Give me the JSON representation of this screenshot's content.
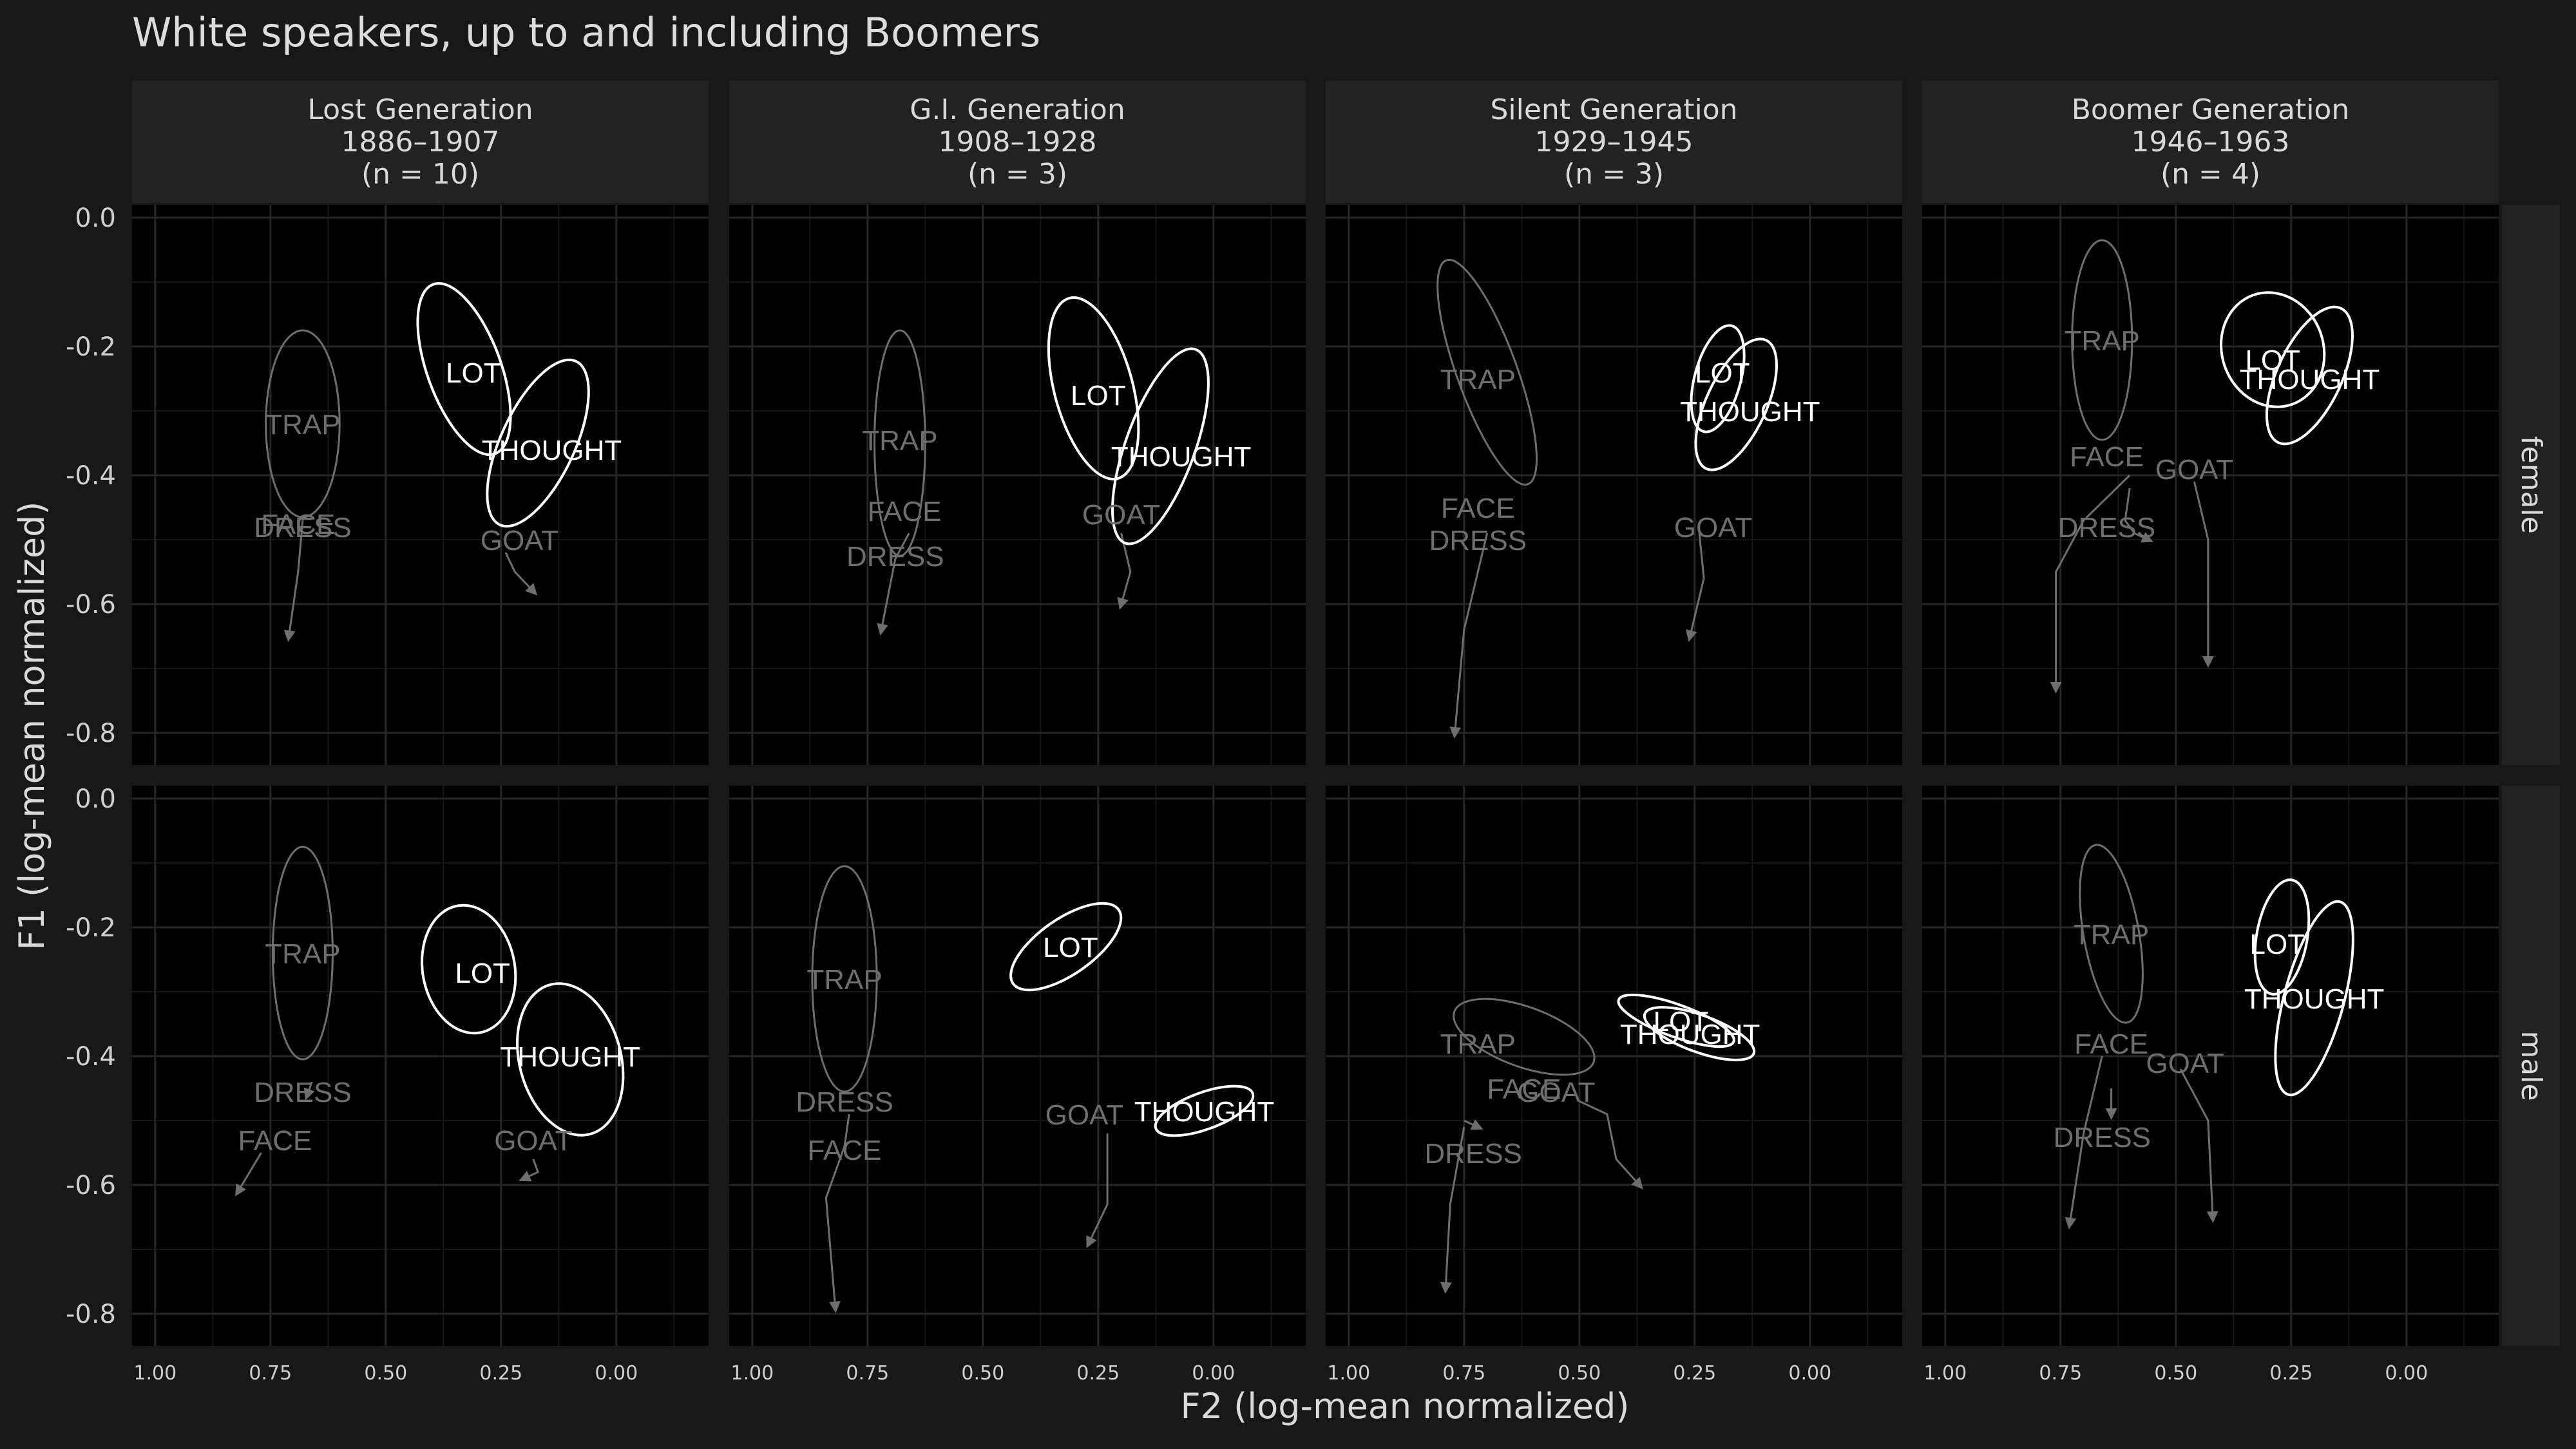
{
  "title": "White speakers, up to and including Boomers",
  "colors": {
    "background": "#181818",
    "panel": "#000000",
    "strip": "#222222",
    "grid": "#262626",
    "highlight": "#ffffff",
    "muted": "#6e6e6e"
  },
  "chart_data": {
    "type": "scatter",
    "xlabel": "F2 (log-mean normalized)",
    "ylabel": "F1 (log-mean normalized)",
    "xlim": [
      1.05,
      -0.2
    ],
    "ylim": [
      0.02,
      -0.85
    ],
    "x_reversed": true,
    "y_reversed": true,
    "x_ticks": [
      "1.00",
      "0.75",
      "0.50",
      "0.25",
      "0.00"
    ],
    "x_tick_values": [
      1.0,
      0.75,
      0.5,
      0.25,
      0.0
    ],
    "y_ticks": [
      "-0.8",
      "-0.6",
      "-0.4",
      "-0.2",
      "0.0"
    ],
    "y_tick_values": [
      -0.8,
      -0.6,
      -0.4,
      -0.2,
      0.0
    ],
    "grid": true,
    "columns": [
      {
        "name": "Lost Generation",
        "years": "1886–1907",
        "n": "(n = 10)"
      },
      {
        "name": "G.I. Generation",
        "years": "1908–1928",
        "n": "(n = 3)"
      },
      {
        "name": "Silent Generation",
        "years": "1929–1945",
        "n": "(n = 3)"
      },
      {
        "name": "Boomer Generation",
        "years": "1946–1963",
        "n": "(n = 4)"
      }
    ],
    "rows": [
      "female",
      "male"
    ],
    "highlighted_vowels": [
      "LOT",
      "THOUGHT"
    ],
    "panels": [
      {
        "row": 0,
        "col": 0,
        "labels": [
          {
            "text": "DRESS",
            "x": 0.68,
            "y": -0.48
          },
          {
            "text": "FACE",
            "x": 0.69,
            "y": -0.475
          },
          {
            "text": "GOAT",
            "x": 0.21,
            "y": -0.5
          },
          {
            "text": "TRAP",
            "x": 0.68,
            "y": -0.32
          },
          {
            "text": "THOUGHT",
            "x": 0.14,
            "y": -0.36
          },
          {
            "text": "LOT",
            "x": 0.31,
            "y": -0.24
          }
        ],
        "ellipses": [
          {
            "vowel": "TRAP",
            "cx": 0.68,
            "cy": -0.32,
            "rx": 0.08,
            "ry": 0.145,
            "angle": 0
          },
          {
            "vowel": "LOT",
            "cx": 0.33,
            "cy": -0.235,
            "rx": 0.08,
            "ry": 0.14,
            "angle": -20
          },
          {
            "vowel": "THOUGHT",
            "cx": 0.17,
            "cy": -0.35,
            "rx": 0.08,
            "ry": 0.14,
            "angle": 25
          }
        ],
        "trajectories": [
          {
            "points": [
              [
                0.68,
                -0.47
              ],
              [
                0.69,
                -0.55
              ],
              [
                0.71,
                -0.65
              ]
            ]
          },
          {
            "points": [
              [
                0.24,
                -0.52
              ],
              [
                0.22,
                -0.55
              ],
              [
                0.18,
                -0.58
              ]
            ]
          }
        ]
      },
      {
        "row": 0,
        "col": 1,
        "labels": [
          {
            "text": "DRESS",
            "x": 0.69,
            "y": -0.525
          },
          {
            "text": "FACE",
            "x": 0.67,
            "y": -0.455
          },
          {
            "text": "GOAT",
            "x": 0.2,
            "y": -0.46
          },
          {
            "text": "TRAP",
            "x": 0.68,
            "y": -0.345
          },
          {
            "text": "THOUGHT",
            "x": 0.07,
            "y": -0.37
          },
          {
            "text": "LOT",
            "x": 0.25,
            "y": -0.275
          }
        ],
        "ellipses": [
          {
            "vowel": "TRAP",
            "cx": 0.68,
            "cy": -0.35,
            "rx": 0.055,
            "ry": 0.175,
            "angle": 0
          },
          {
            "vowel": "LOT",
            "cx": 0.26,
            "cy": -0.265,
            "rx": 0.085,
            "ry": 0.145,
            "angle": -15
          },
          {
            "vowel": "THOUGHT",
            "cx": 0.115,
            "cy": -0.355,
            "rx": 0.075,
            "ry": 0.16,
            "angle": 20
          }
        ],
        "trajectories": [
          {
            "points": [
              [
                0.66,
                -0.49
              ],
              [
                0.69,
                -0.53
              ],
              [
                0.72,
                -0.64
              ]
            ]
          },
          {
            "points": [
              [
                0.2,
                -0.49
              ],
              [
                0.18,
                -0.55
              ],
              [
                0.2,
                -0.6
              ]
            ]
          }
        ]
      },
      {
        "row": 0,
        "col": 2,
        "labels": [
          {
            "text": "DRESS",
            "x": 0.72,
            "y": -0.5
          },
          {
            "text": "FACE",
            "x": 0.72,
            "y": -0.45
          },
          {
            "text": "GOAT",
            "x": 0.21,
            "y": -0.48
          },
          {
            "text": "TRAP",
            "x": 0.72,
            "y": -0.25
          },
          {
            "text": "THOUGHT",
            "x": 0.13,
            "y": -0.3
          },
          {
            "text": "LOT",
            "x": 0.19,
            "y": -0.24
          }
        ],
        "ellipses": [
          {
            "vowel": "TRAP",
            "cx": 0.7,
            "cy": -0.24,
            "rx": 0.065,
            "ry": 0.185,
            "angle": -20
          },
          {
            "vowel": "LOT",
            "cx": 0.2,
            "cy": -0.25,
            "rx": 0.05,
            "ry": 0.085,
            "angle": 15
          },
          {
            "vowel": "THOUGHT",
            "cx": 0.16,
            "cy": -0.29,
            "rx": 0.065,
            "ry": 0.11,
            "angle": 25
          }
        ],
        "trajectories": [
          {
            "points": [
              [
                0.7,
                -0.49
              ],
              [
                0.75,
                -0.64
              ],
              [
                0.77,
                -0.8
              ]
            ]
          },
          {
            "points": [
              [
                0.24,
                -0.49
              ],
              [
                0.23,
                -0.56
              ],
              [
                0.26,
                -0.65
              ]
            ]
          }
        ]
      },
      {
        "row": 0,
        "col": 3,
        "labels": [
          {
            "text": "DRESS",
            "x": 0.65,
            "y": -0.48
          },
          {
            "text": "FACE",
            "x": 0.65,
            "y": -0.37
          },
          {
            "text": "GOAT",
            "x": 0.46,
            "y": -0.39
          },
          {
            "text": "TRAP",
            "x": 0.66,
            "y": -0.19
          },
          {
            "text": "THOUGHT",
            "x": 0.21,
            "y": -0.25
          },
          {
            "text": "LOT",
            "x": 0.29,
            "y": -0.22
          }
        ],
        "ellipses": [
          {
            "vowel": "TRAP",
            "cx": 0.66,
            "cy": -0.19,
            "rx": 0.065,
            "ry": 0.155,
            "angle": 0
          },
          {
            "vowel": "LOT",
            "cx": 0.29,
            "cy": -0.205,
            "rx": 0.11,
            "ry": 0.09,
            "angle": -20
          },
          {
            "vowel": "THOUGHT",
            "cx": 0.21,
            "cy": -0.245,
            "rx": 0.07,
            "ry": 0.115,
            "angle": 25
          }
        ],
        "trajectories": [
          {
            "points": [
              [
                0.6,
                -0.4
              ],
              [
                0.7,
                -0.47
              ],
              [
                0.76,
                -0.55
              ],
              [
                0.76,
                -0.73
              ]
            ]
          },
          {
            "points": [
              [
                0.6,
                -0.42
              ],
              [
                0.61,
                -0.47
              ],
              [
                0.59,
                -0.49
              ],
              [
                0.56,
                -0.5
              ]
            ]
          },
          {
            "points": [
              [
                0.46,
                -0.41
              ],
              [
                0.43,
                -0.5
              ],
              [
                0.43,
                -0.69
              ]
            ]
          }
        ]
      },
      {
        "row": 1,
        "col": 0,
        "labels": [
          {
            "text": "FACE",
            "x": 0.74,
            "y": -0.53
          },
          {
            "text": "DRESS",
            "x": 0.68,
            "y": -0.455
          },
          {
            "text": "GOAT",
            "x": 0.18,
            "y": -0.53
          },
          {
            "text": "TRAP",
            "x": 0.68,
            "y": -0.24
          },
          {
            "text": "THOUGHT",
            "x": 0.1,
            "y": -0.4
          },
          {
            "text": "LOT",
            "x": 0.29,
            "y": -0.27
          }
        ],
        "ellipses": [
          {
            "vowel": "TRAP",
            "cx": 0.68,
            "cy": -0.24,
            "rx": 0.065,
            "ry": 0.165,
            "angle": 0
          },
          {
            "vowel": "LOT",
            "cx": 0.32,
            "cy": -0.265,
            "rx": 0.1,
            "ry": 0.1,
            "angle": -10
          },
          {
            "vowel": "THOUGHT",
            "cx": 0.1,
            "cy": -0.405,
            "rx": 0.11,
            "ry": 0.12,
            "angle": -15
          }
        ],
        "trajectories": [
          {
            "points": [
              [
                0.77,
                -0.55
              ],
              [
                0.82,
                -0.61
              ]
            ]
          },
          {
            "points": [
              [
                0.66,
                -0.44
              ],
              [
                0.67,
                -0.46
              ]
            ]
          },
          {
            "points": [
              [
                0.18,
                -0.56
              ],
              [
                0.17,
                -0.58
              ],
              [
                0.2,
                -0.59
              ]
            ]
          }
        ]
      },
      {
        "row": 1,
        "col": 1,
        "labels": [
          {
            "text": "FACE",
            "x": 0.8,
            "y": -0.545
          },
          {
            "text": "DRESS",
            "x": 0.8,
            "y": -0.47
          },
          {
            "text": "GOAT",
            "x": 0.28,
            "y": -0.49
          },
          {
            "text": "THOUGHT",
            "x": 0.02,
            "y": -0.485
          },
          {
            "text": "TRAP",
            "x": 0.8,
            "y": -0.28
          },
          {
            "text": "LOT",
            "x": 0.31,
            "y": -0.23
          }
        ],
        "ellipses": [
          {
            "vowel": "TRAP",
            "cx": 0.8,
            "cy": -0.28,
            "rx": 0.07,
            "ry": 0.175,
            "angle": 0
          },
          {
            "vowel": "LOT",
            "cx": 0.32,
            "cy": -0.23,
            "rx": 0.06,
            "ry": 0.1,
            "angle": 55
          },
          {
            "vowel": "THOUGHT",
            "cx": 0.02,
            "cy": -0.485,
            "rx": 0.04,
            "ry": 0.08,
            "angle": 70
          }
        ],
        "trajectories": [
          {
            "points": [
              [
                0.79,
                -0.49
              ],
              [
                0.8,
                -0.54
              ],
              [
                0.84,
                -0.62
              ],
              [
                0.82,
                -0.79
              ]
            ]
          },
          {
            "points": [
              [
                0.23,
                -0.52
              ],
              [
                0.23,
                -0.63
              ],
              [
                0.27,
                -0.69
              ]
            ]
          }
        ]
      },
      {
        "row": 1,
        "col": 2,
        "labels": [
          {
            "text": "DRESS",
            "x": 0.73,
            "y": -0.55
          },
          {
            "text": "FACE",
            "x": 0.62,
            "y": -0.45
          },
          {
            "text": "GOAT",
            "x": 0.55,
            "y": -0.455
          },
          {
            "text": "TRAP",
            "x": 0.72,
            "y": -0.38
          },
          {
            "text": "THOUGHT",
            "x": 0.26,
            "y": -0.365
          },
          {
            "text": "LOT",
            "x": 0.28,
            "y": -0.345
          }
        ],
        "ellipses": [
          {
            "vowel": "TRAP",
            "cx": 0.62,
            "cy": -0.37,
            "rx": 0.065,
            "ry": 0.115,
            "angle": -70
          },
          {
            "vowel": "LOT",
            "cx": 0.29,
            "cy": -0.345,
            "rx": 0.035,
            "ry": 0.095,
            "angle": -70
          },
          {
            "vowel": "THOUGHT",
            "cx": 0.24,
            "cy": -0.365,
            "rx": 0.04,
            "ry": 0.09,
            "angle": -70
          }
        ],
        "trajectories": [
          {
            "points": [
              [
                0.75,
                -0.51
              ],
              [
                0.78,
                -0.63
              ],
              [
                0.79,
                -0.76
              ]
            ]
          },
          {
            "points": [
              [
                0.75,
                -0.5
              ],
              [
                0.72,
                -0.51
              ]
            ]
          },
          {
            "points": [
              [
                0.5,
                -0.47
              ],
              [
                0.44,
                -0.49
              ],
              [
                0.42,
                -0.56
              ],
              [
                0.37,
                -0.6
              ]
            ]
          }
        ]
      },
      {
        "row": 1,
        "col": 3,
        "labels": [
          {
            "text": "DRESS",
            "x": 0.66,
            "y": -0.525
          },
          {
            "text": "FACE",
            "x": 0.64,
            "y": -0.38
          },
          {
            "text": "GOAT",
            "x": 0.48,
            "y": -0.41
          },
          {
            "text": "TRAP",
            "x": 0.64,
            "y": -0.21
          },
          {
            "text": "THOUGHT",
            "x": 0.2,
            "y": -0.31
          },
          {
            "text": "LOT",
            "x": 0.28,
            "y": -0.225
          }
        ],
        "ellipses": [
          {
            "vowel": "TRAP",
            "cx": 0.64,
            "cy": -0.21,
            "rx": 0.06,
            "ry": 0.14,
            "angle": -10
          },
          {
            "vowel": "LOT",
            "cx": 0.27,
            "cy": -0.215,
            "rx": 0.055,
            "ry": 0.09,
            "angle": 10
          },
          {
            "vowel": "THOUGHT",
            "cx": 0.2,
            "cy": -0.31,
            "rx": 0.065,
            "ry": 0.155,
            "angle": 15
          }
        ],
        "trajectories": [
          {
            "points": [
              [
                0.66,
                -0.4
              ],
              [
                0.7,
                -0.52
              ],
              [
                0.73,
                -0.66
              ]
            ]
          },
          {
            "points": [
              [
                0.64,
                -0.45
              ],
              [
                0.64,
                -0.49
              ]
            ]
          },
          {
            "points": [
              [
                0.49,
                -0.42
              ],
              [
                0.43,
                -0.5
              ],
              [
                0.42,
                -0.65
              ]
            ]
          }
        ]
      }
    ]
  }
}
